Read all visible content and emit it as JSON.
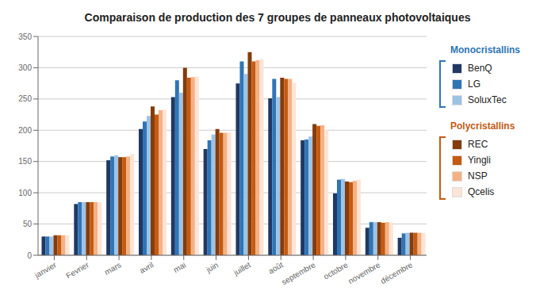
{
  "chart_data": {
    "type": "bar",
    "title": "Comparaison de production des 7 groupes de panneaux photovoltaiques",
    "categories": [
      "janvier",
      "Fevrier",
      "mars",
      "avril",
      "mai",
      "juin",
      "juillet",
      "août",
      "septembre",
      "octobre",
      "novembre",
      "décembre"
    ],
    "series": [
      {
        "name": "BenQ",
        "color": "#1f3864",
        "values": [
          30,
          82,
          152,
          202,
          253,
          170,
          275,
          251,
          184,
          99,
          44,
          28
        ]
      },
      {
        "name": "LG",
        "color": "#2e75b6",
        "values": [
          30,
          85,
          158,
          214,
          280,
          184,
          310,
          282,
          185,
          121,
          53,
          35
        ]
      },
      {
        "name": "SoluxTec",
        "color": "#9dc3e6",
        "values": [
          30,
          85,
          160,
          223,
          260,
          193,
          290,
          253,
          190,
          122,
          53,
          36
        ]
      },
      {
        "name": "REC",
        "color": "#843c0c",
        "values": [
          32,
          85,
          157,
          238,
          300,
          202,
          325,
          284,
          210,
          118,
          53,
          36
        ]
      },
      {
        "name": "Yingli",
        "color": "#c55a11",
        "values": [
          32,
          85,
          157,
          225,
          284,
          196,
          310,
          282,
          207,
          117,
          52,
          36
        ]
      },
      {
        "name": "NSP",
        "color": "#f4b183",
        "values": [
          32,
          85,
          158,
          232,
          285,
          196,
          312,
          282,
          208,
          119,
          53,
          36
        ]
      },
      {
        "name": "Qcelis",
        "color": "#fce4d6",
        "values": [
          32,
          85,
          162,
          233,
          286,
          197,
          314,
          276,
          200,
          121,
          53,
          36
        ]
      }
    ],
    "groups": [
      {
        "name": "Monocristallins",
        "color": "#2e75b6",
        "series": [
          "BenQ",
          "LG",
          "SoluxTec"
        ]
      },
      {
        "name": "Polycristallins",
        "color": "#c55a11",
        "series": [
          "REC",
          "Yingli",
          "NSP",
          "Qcelis"
        ]
      }
    ],
    "ylim": [
      0,
      350
    ],
    "yticks": [
      0,
      50,
      100,
      150,
      200,
      250,
      300,
      350
    ],
    "grid": true
  }
}
